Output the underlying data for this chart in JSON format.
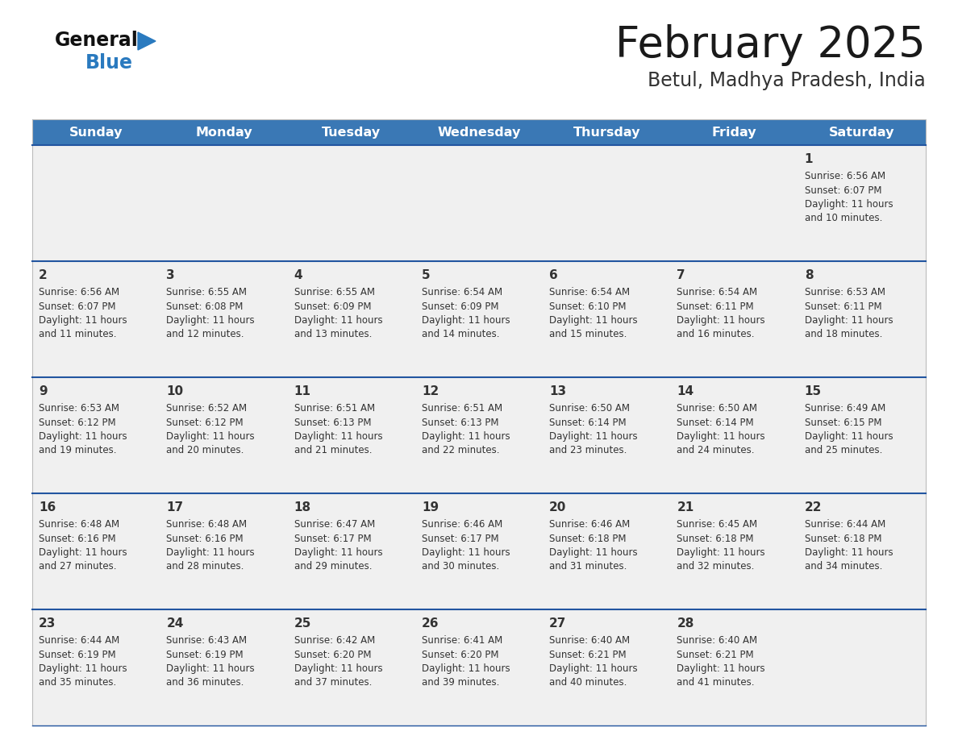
{
  "title": "February 2025",
  "subtitle": "Betul, Madhya Pradesh, India",
  "days_of_week": [
    "Sunday",
    "Monday",
    "Tuesday",
    "Wednesday",
    "Thursday",
    "Friday",
    "Saturday"
  ],
  "header_bg": "#3a78b5",
  "header_text": "#ffffff",
  "cell_bg_even": "#f0f0f0",
  "cell_bg_odd": "#ffffff",
  "divider_color": "#2255a0",
  "text_color": "#333333",
  "title_color": "#1a1a1a",
  "subtitle_color": "#333333",
  "logo_text_color": "#111111",
  "logo_blue_color": "#2a7abf",
  "logo_triangle_color": "#2a7abf",
  "calendar": [
    [
      null,
      null,
      null,
      null,
      null,
      null,
      {
        "day": "1",
        "sunrise": "6:56 AM",
        "sunset": "6:07 PM",
        "daylight_h": "11 hours",
        "daylight_m": "10 minutes."
      }
    ],
    [
      {
        "day": "2",
        "sunrise": "6:56 AM",
        "sunset": "6:07 PM",
        "daylight_h": "11 hours",
        "daylight_m": "11 minutes."
      },
      {
        "day": "3",
        "sunrise": "6:55 AM",
        "sunset": "6:08 PM",
        "daylight_h": "11 hours",
        "daylight_m": "12 minutes."
      },
      {
        "day": "4",
        "sunrise": "6:55 AM",
        "sunset": "6:09 PM",
        "daylight_h": "11 hours",
        "daylight_m": "13 minutes."
      },
      {
        "day": "5",
        "sunrise": "6:54 AM",
        "sunset": "6:09 PM",
        "daylight_h": "11 hours",
        "daylight_m": "14 minutes."
      },
      {
        "day": "6",
        "sunrise": "6:54 AM",
        "sunset": "6:10 PM",
        "daylight_h": "11 hours",
        "daylight_m": "15 minutes."
      },
      {
        "day": "7",
        "sunrise": "6:54 AM",
        "sunset": "6:11 PM",
        "daylight_h": "11 hours",
        "daylight_m": "16 minutes."
      },
      {
        "day": "8",
        "sunrise": "6:53 AM",
        "sunset": "6:11 PM",
        "daylight_h": "11 hours",
        "daylight_m": "18 minutes."
      }
    ],
    [
      {
        "day": "9",
        "sunrise": "6:53 AM",
        "sunset": "6:12 PM",
        "daylight_h": "11 hours",
        "daylight_m": "19 minutes."
      },
      {
        "day": "10",
        "sunrise": "6:52 AM",
        "sunset": "6:12 PM",
        "daylight_h": "11 hours",
        "daylight_m": "20 minutes."
      },
      {
        "day": "11",
        "sunrise": "6:51 AM",
        "sunset": "6:13 PM",
        "daylight_h": "11 hours",
        "daylight_m": "21 minutes."
      },
      {
        "day": "12",
        "sunrise": "6:51 AM",
        "sunset": "6:13 PM",
        "daylight_h": "11 hours",
        "daylight_m": "22 minutes."
      },
      {
        "day": "13",
        "sunrise": "6:50 AM",
        "sunset": "6:14 PM",
        "daylight_h": "11 hours",
        "daylight_m": "23 minutes."
      },
      {
        "day": "14",
        "sunrise": "6:50 AM",
        "sunset": "6:14 PM",
        "daylight_h": "11 hours",
        "daylight_m": "24 minutes."
      },
      {
        "day": "15",
        "sunrise": "6:49 AM",
        "sunset": "6:15 PM",
        "daylight_h": "11 hours",
        "daylight_m": "25 minutes."
      }
    ],
    [
      {
        "day": "16",
        "sunrise": "6:48 AM",
        "sunset": "6:16 PM",
        "daylight_h": "11 hours",
        "daylight_m": "27 minutes."
      },
      {
        "day": "17",
        "sunrise": "6:48 AM",
        "sunset": "6:16 PM",
        "daylight_h": "11 hours",
        "daylight_m": "28 minutes."
      },
      {
        "day": "18",
        "sunrise": "6:47 AM",
        "sunset": "6:17 PM",
        "daylight_h": "11 hours",
        "daylight_m": "29 minutes."
      },
      {
        "day": "19",
        "sunrise": "6:46 AM",
        "sunset": "6:17 PM",
        "daylight_h": "11 hours",
        "daylight_m": "30 minutes."
      },
      {
        "day": "20",
        "sunrise": "6:46 AM",
        "sunset": "6:18 PM",
        "daylight_h": "11 hours",
        "daylight_m": "31 minutes."
      },
      {
        "day": "21",
        "sunrise": "6:45 AM",
        "sunset": "6:18 PM",
        "daylight_h": "11 hours",
        "daylight_m": "32 minutes."
      },
      {
        "day": "22",
        "sunrise": "6:44 AM",
        "sunset": "6:18 PM",
        "daylight_h": "11 hours",
        "daylight_m": "34 minutes."
      }
    ],
    [
      {
        "day": "23",
        "sunrise": "6:44 AM",
        "sunset": "6:19 PM",
        "daylight_h": "11 hours",
        "daylight_m": "35 minutes."
      },
      {
        "day": "24",
        "sunrise": "6:43 AM",
        "sunset": "6:19 PM",
        "daylight_h": "11 hours",
        "daylight_m": "36 minutes."
      },
      {
        "day": "25",
        "sunrise": "6:42 AM",
        "sunset": "6:20 PM",
        "daylight_h": "11 hours",
        "daylight_m": "37 minutes."
      },
      {
        "day": "26",
        "sunrise": "6:41 AM",
        "sunset": "6:20 PM",
        "daylight_h": "11 hours",
        "daylight_m": "39 minutes."
      },
      {
        "day": "27",
        "sunrise": "6:40 AM",
        "sunset": "6:21 PM",
        "daylight_h": "11 hours",
        "daylight_m": "40 minutes."
      },
      {
        "day": "28",
        "sunrise": "6:40 AM",
        "sunset": "6:21 PM",
        "daylight_h": "11 hours",
        "daylight_m": "41 minutes."
      },
      null
    ]
  ]
}
